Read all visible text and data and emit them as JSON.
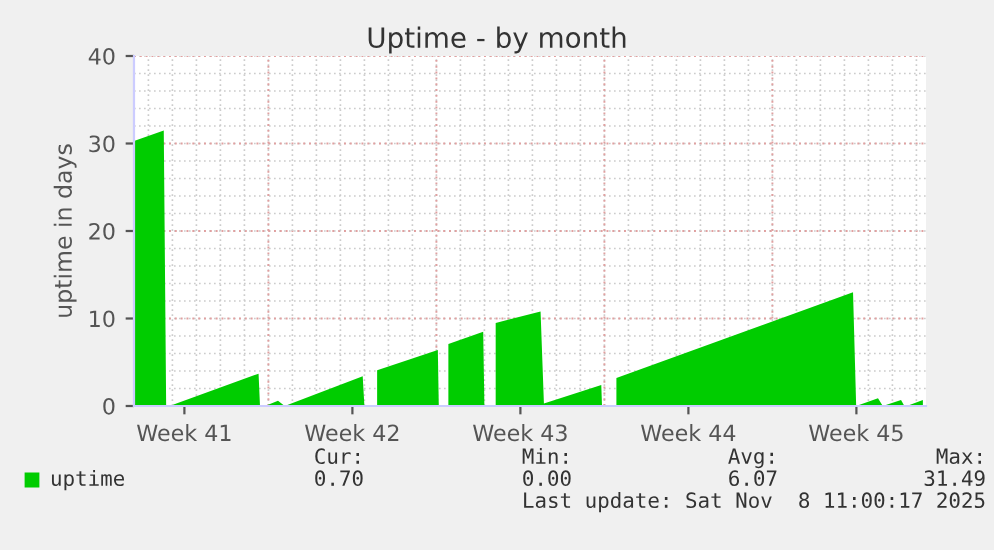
{
  "chart_data": {
    "type": "area",
    "title": "Uptime - by month",
    "ylabel": "uptime in days",
    "x": [
      "2025-10-07T09:36",
      "2025-10-08T15:22",
      "2025-10-08T17:46",
      "2025-10-08T21:07",
      "2025-10-12T14:10",
      "2025-10-12T15:36",
      null,
      "2025-10-12T20:38",
      "2025-10-13T09:36",
      "2025-10-13T16:19",
      "2025-10-16T22:19",
      "2025-10-17T00:00",
      null,
      "2025-10-17T12:43",
      "2025-10-20T01:26",
      "2025-10-20T02:24",
      null,
      "2025-10-20T12:00",
      "2025-10-21T22:48",
      "2025-10-22T00:00",
      null,
      "2025-10-22T11:17",
      "2025-10-24T08:10",
      "2025-10-24T11:31",
      "2025-10-26T20:53",
      "2025-10-26T21:36",
      null,
      "2025-10-27T12:00",
      "2025-11-06T08:38",
      "2025-11-06T11:46",
      "2025-11-07T09:36",
      "2025-11-07T14:24",
      "2025-11-08T08:38",
      "2025-11-08T12:00",
      "2025-11-08T14:24",
      "2025-11-09T06:29"
    ],
    "series": [
      {
        "name": "uptime",
        "color": "#00cc00",
        "values": [
          30.3,
          31.5,
          0,
          0,
          3.7,
          0,
          null,
          0,
          0.6,
          0,
          3.4,
          0,
          null,
          4.1,
          6.4,
          0,
          null,
          7.1,
          8.5,
          0,
          null,
          9.5,
          10.8,
          0.3,
          2.4,
          0,
          null,
          3.2,
          13.0,
          0,
          0.9,
          0,
          0.7,
          0,
          0,
          0.7
        ]
      }
    ],
    "xlim": [
      "2025-10-07T09:36",
      "2025-11-09T09:36"
    ],
    "ylim": [
      0,
      40
    ],
    "yticks": [
      0,
      10,
      20,
      30,
      40
    ],
    "xticks": [
      {
        "value": "2025-10-09T12:00",
        "label": "Week 41"
      },
      {
        "value": "2025-10-16T12:00",
        "label": "Week 42"
      },
      {
        "value": "2025-10-23T12:00",
        "label": "Week 43"
      },
      {
        "value": "2025-10-30T12:00",
        "label": "Week 44"
      },
      {
        "value": "2025-11-06T12:00",
        "label": "Week 45"
      }
    ],
    "grid": true,
    "legend": "bottom",
    "annotations": [
      "Cur:",
      "Min:",
      "Avg:",
      "Max:",
      "0.70",
      "0.00",
      "6.07",
      "31.49",
      "Last update: Sat Nov  8 11:00:17 2025"
    ]
  }
}
